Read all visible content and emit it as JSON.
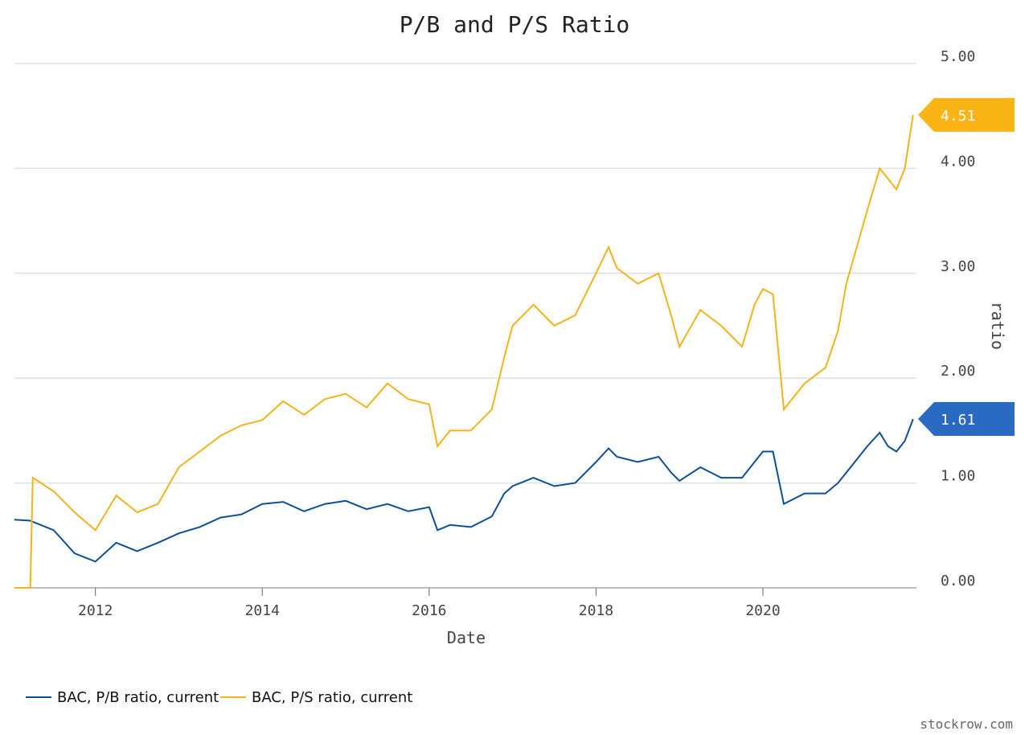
{
  "chart_data": {
    "type": "line",
    "title": "P/B and P/S Ratio",
    "x_label": "Date",
    "y_label": "ratio",
    "watermark": "stockrow.com",
    "x": [
      2011.03,
      2011.22,
      2011.25,
      2011.5,
      2011.75,
      2012.0,
      2012.25,
      2012.5,
      2012.75,
      2013.0,
      2013.25,
      2013.5,
      2013.75,
      2014.0,
      2014.25,
      2014.5,
      2014.75,
      2015.0,
      2015.25,
      2015.5,
      2015.75,
      2016.0,
      2016.1,
      2016.25,
      2016.5,
      2016.75,
      2016.9,
      2017.0,
      2017.25,
      2017.5,
      2017.75,
      2018.0,
      2018.15,
      2018.25,
      2018.5,
      2018.75,
      2018.9,
      2019.0,
      2019.25,
      2019.5,
      2019.75,
      2019.9,
      2020.0,
      2020.12,
      2020.25,
      2020.5,
      2020.75,
      2020.9,
      2021.0,
      2021.25,
      2021.4,
      2021.5,
      2021.6,
      2021.7,
      2021.8
    ],
    "series": [
      {
        "name": "BAC, P/B ratio, current",
        "color": "#0b4f9c",
        "badge_color": "#2a6ac2",
        "last_label": "1.61",
        "values": [
          0.65,
          0.64,
          0.63,
          0.55,
          0.33,
          0.25,
          0.43,
          0.35,
          0.43,
          0.52,
          0.58,
          0.67,
          0.7,
          0.8,
          0.82,
          0.73,
          0.8,
          0.83,
          0.75,
          0.8,
          0.73,
          0.77,
          0.55,
          0.6,
          0.58,
          0.68,
          0.9,
          0.97,
          1.05,
          0.97,
          1.0,
          1.2,
          1.33,
          1.25,
          1.2,
          1.25,
          1.1,
          1.02,
          1.15,
          1.05,
          1.05,
          1.2,
          1.3,
          1.3,
          0.8,
          0.9,
          0.9,
          1.0,
          1.1,
          1.35,
          1.48,
          1.35,
          1.3,
          1.4,
          1.61
        ]
      },
      {
        "name": "BAC, P/S ratio, current",
        "color": "#f5b21a",
        "badge_color": "#fbb416",
        "last_label": "4.51",
        "values": [
          0,
          0,
          1.05,
          0.92,
          0.72,
          0.55,
          0.88,
          0.72,
          0.8,
          1.15,
          1.3,
          1.45,
          1.55,
          1.6,
          1.78,
          1.65,
          1.8,
          1.85,
          1.72,
          1.95,
          1.8,
          1.75,
          1.35,
          1.5,
          1.5,
          1.7,
          2.2,
          2.5,
          2.7,
          2.5,
          2.6,
          3.0,
          3.25,
          3.05,
          2.9,
          3.0,
          2.6,
          2.3,
          2.65,
          2.5,
          2.3,
          2.7,
          2.85,
          2.8,
          1.7,
          1.95,
          2.1,
          2.45,
          2.9,
          3.6,
          4.0,
          3.9,
          3.8,
          4.0,
          4.51
        ]
      }
    ],
    "xlim": [
      2011.03,
      2021.84
    ],
    "xticks": [
      2012,
      2014,
      2016,
      2018,
      2020
    ],
    "ylim": [
      0,
      5
    ],
    "yticks": [
      {
        "value": 0,
        "label": "0.00"
      },
      {
        "value": 1,
        "label": "1.00"
      },
      {
        "value": 2,
        "label": "2.00"
      },
      {
        "value": 3,
        "label": "3.00"
      },
      {
        "value": 4,
        "label": "4.00"
      },
      {
        "value": 5,
        "label": "5.00"
      }
    ],
    "grid": true,
    "legend": "bottom-left"
  }
}
